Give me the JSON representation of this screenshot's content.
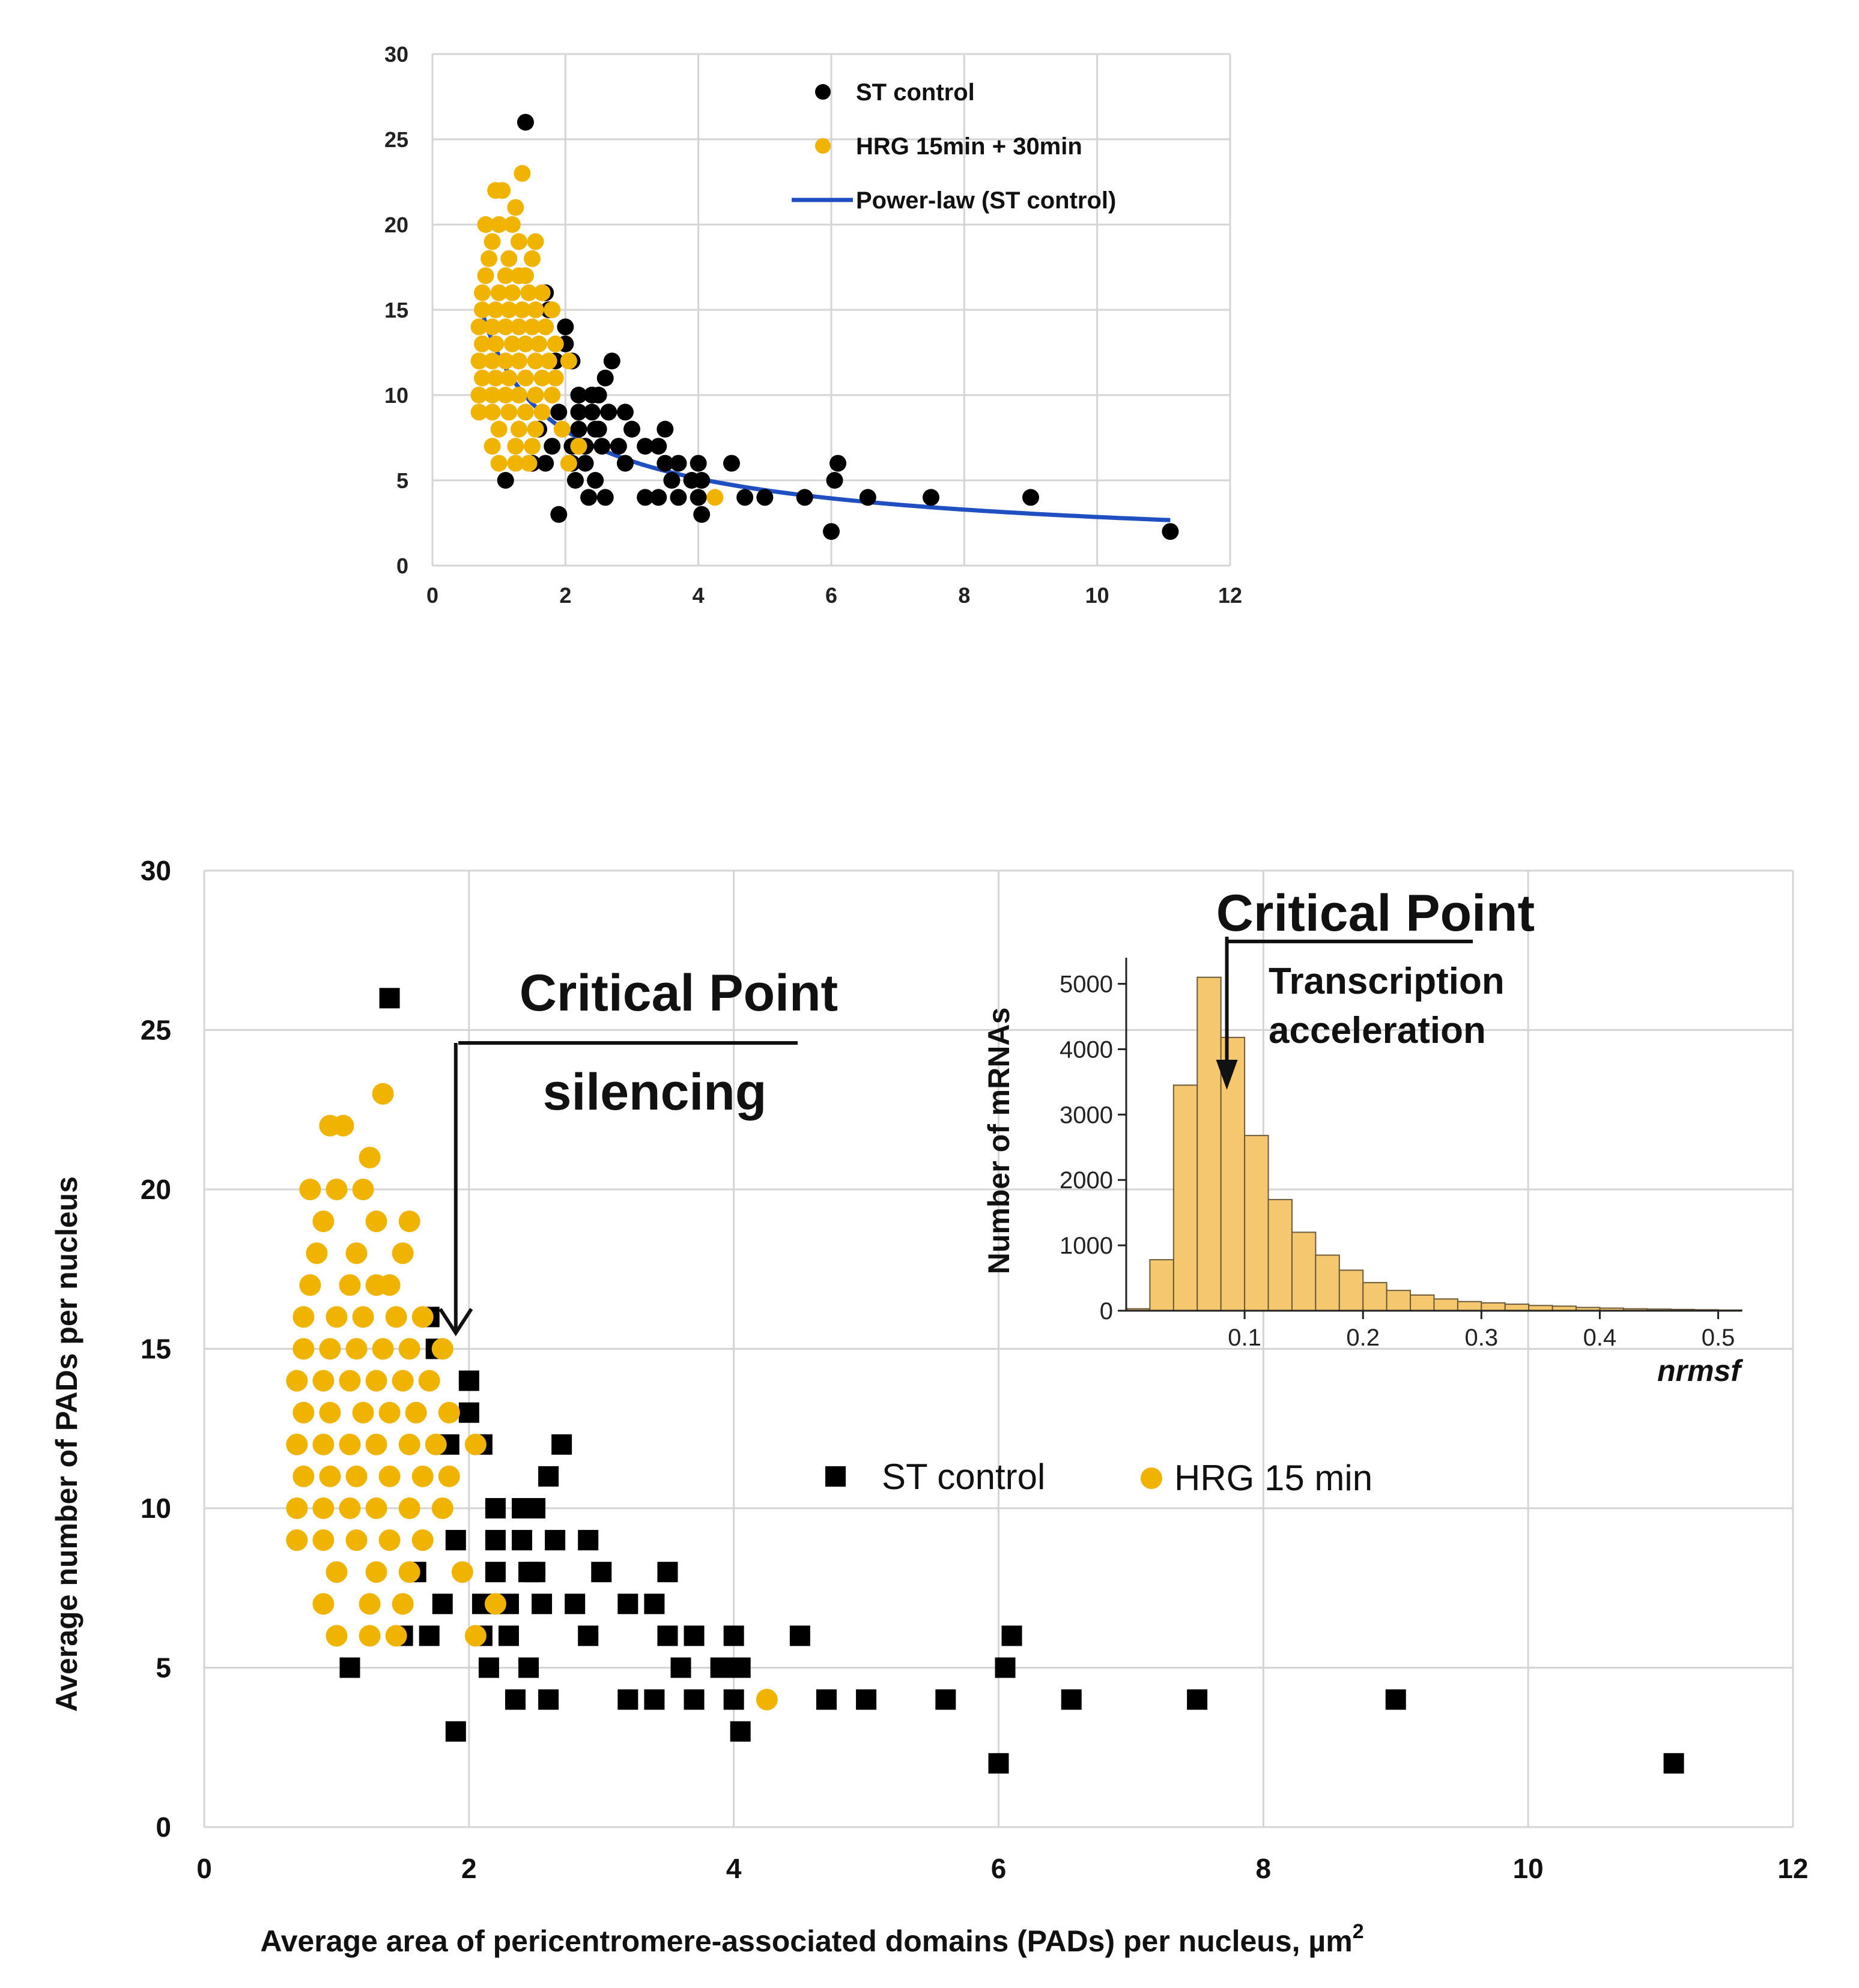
{
  "chart_data": [
    {
      "id": "top",
      "type": "scatter",
      "title": "",
      "xlabel": "",
      "ylabel": "",
      "xlim": [
        0,
        12
      ],
      "ylim": [
        0,
        30
      ],
      "xticks": [
        0,
        2,
        4,
        6,
        8,
        10,
        12
      ],
      "yticks": [
        0,
        5,
        10,
        15,
        20,
        25,
        30
      ],
      "legend": {
        "position": "top-right",
        "entries": [
          {
            "label": "ST control",
            "color": "#000000",
            "marker": "circle"
          },
          {
            "label": "HRG 15min + 30min",
            "color": "#F0B400",
            "marker": "circle"
          },
          {
            "label": "Power-law (ST control)",
            "color": "#1F4FC0",
            "marker": "line"
          }
        ]
      },
      "series": [
        {
          "name": "ST control",
          "marker": "circle",
          "color": "#000000",
          "points": [
            [
              1.4,
              26
            ],
            [
              1.7,
              16
            ],
            [
              1.75,
              15
            ],
            [
              2.0,
              14
            ],
            [
              2.0,
              13
            ],
            [
              1.85,
              12
            ],
            [
              2.1,
              12
            ],
            [
              2.7,
              12
            ],
            [
              2.6,
              11
            ],
            [
              2.2,
              10
            ],
            [
              2.4,
              10
            ],
            [
              2.5,
              10
            ],
            [
              2.9,
              9
            ],
            [
              2.2,
              9
            ],
            [
              2.4,
              9
            ],
            [
              2.65,
              9
            ],
            [
              1.9,
              9
            ],
            [
              2.5,
              8
            ],
            [
              3.0,
              8
            ],
            [
              3.5,
              8
            ],
            [
              1.6,
              8
            ],
            [
              2.2,
              8
            ],
            [
              2.45,
              8
            ],
            [
              2.3,
              7
            ],
            [
              2.8,
              7
            ],
            [
              3.2,
              7
            ],
            [
              3.4,
              7
            ],
            [
              1.8,
              7
            ],
            [
              2.1,
              7
            ],
            [
              2.55,
              7
            ],
            [
              1.5,
              6
            ],
            [
              1.7,
              6
            ],
            [
              2.1,
              6
            ],
            [
              2.3,
              6
            ],
            [
              2.9,
              6
            ],
            [
              3.5,
              6
            ],
            [
              3.7,
              6
            ],
            [
              4.0,
              6
            ],
            [
              4.5,
              6
            ],
            [
              6.1,
              6
            ],
            [
              1.1,
              5
            ],
            [
              2.15,
              5
            ],
            [
              2.45,
              5
            ],
            [
              3.6,
              5
            ],
            [
              3.9,
              5
            ],
            [
              4.05,
              5
            ],
            [
              6.05,
              5
            ],
            [
              2.35,
              4
            ],
            [
              2.6,
              4
            ],
            [
              3.2,
              4
            ],
            [
              3.4,
              4
            ],
            [
              3.7,
              4
            ],
            [
              4.0,
              4
            ],
            [
              4.7,
              4
            ],
            [
              5.0,
              4
            ],
            [
              5.6,
              4
            ],
            [
              6.55,
              4
            ],
            [
              7.5,
              4
            ],
            [
              9.0,
              4
            ],
            [
              1.9,
              3
            ],
            [
              4.05,
              3
            ],
            [
              6.0,
              2
            ],
            [
              11.1,
              2
            ]
          ]
        },
        {
          "name": "HRG 15min + 30min",
          "marker": "circle",
          "color": "#F0B400",
          "points": [
            [
              1.35,
              23
            ],
            [
              0.95,
              22
            ],
            [
              1.05,
              22
            ],
            [
              1.25,
              21
            ],
            [
              0.8,
              20
            ],
            [
              1.0,
              20
            ],
            [
              1.2,
              20
            ],
            [
              1.55,
              19
            ],
            [
              0.9,
              19
            ],
            [
              1.3,
              19
            ],
            [
              1.5,
              18
            ],
            [
              0.85,
              18
            ],
            [
              1.15,
              18
            ],
            [
              1.4,
              17
            ],
            [
              0.8,
              17
            ],
            [
              1.1,
              17
            ],
            [
              1.3,
              17
            ],
            [
              0.75,
              16
            ],
            [
              1.0,
              16
            ],
            [
              1.2,
              16
            ],
            [
              1.45,
              16
            ],
            [
              1.65,
              16
            ],
            [
              0.75,
              15
            ],
            [
              0.95,
              15
            ],
            [
              1.15,
              15
            ],
            [
              1.35,
              15
            ],
            [
              1.55,
              15
            ],
            [
              1.8,
              15
            ],
            [
              0.7,
              14
            ],
            [
              0.9,
              14
            ],
            [
              1.1,
              14
            ],
            [
              1.3,
              14
            ],
            [
              1.5,
              14
            ],
            [
              1.7,
              14
            ],
            [
              0.75,
              13
            ],
            [
              0.95,
              13
            ],
            [
              1.2,
              13
            ],
            [
              1.4,
              13
            ],
            [
              1.6,
              13
            ],
            [
              1.85,
              13
            ],
            [
              0.7,
              12
            ],
            [
              0.9,
              12
            ],
            [
              1.1,
              12
            ],
            [
              1.3,
              12
            ],
            [
              1.55,
              12
            ],
            [
              1.75,
              12
            ],
            [
              2.05,
              12
            ],
            [
              0.75,
              11
            ],
            [
              0.95,
              11
            ],
            [
              1.15,
              11
            ],
            [
              1.4,
              11
            ],
            [
              1.65,
              11
            ],
            [
              1.85,
              11
            ],
            [
              0.7,
              10
            ],
            [
              0.9,
              10
            ],
            [
              1.1,
              10
            ],
            [
              1.3,
              10
            ],
            [
              1.55,
              10
            ],
            [
              1.8,
              10
            ],
            [
              0.7,
              9
            ],
            [
              0.9,
              9
            ],
            [
              1.15,
              9
            ],
            [
              1.4,
              9
            ],
            [
              1.65,
              9
            ],
            [
              1.0,
              8
            ],
            [
              1.3,
              8
            ],
            [
              1.55,
              8
            ],
            [
              1.95,
              8
            ],
            [
              0.9,
              7
            ],
            [
              1.25,
              7
            ],
            [
              1.5,
              7
            ],
            [
              2.2,
              7
            ],
            [
              1.0,
              6
            ],
            [
              1.25,
              6
            ],
            [
              1.45,
              6
            ],
            [
              2.05,
              6
            ],
            [
              4.25,
              4
            ]
          ]
        },
        {
          "name": "Power-law (ST control)",
          "type": "line",
          "color": "#1F4FC0",
          "formula": "y = 12.3 * x^-0.635",
          "x_range": [
            0.7,
            11.1
          ]
        }
      ]
    },
    {
      "id": "bottom",
      "type": "scatter",
      "title": "",
      "xlabel": "Average area  of pericentromere-associated domains (PADs) per nucleus, µm",
      "xlabel_superscript": "2",
      "ylabel": "Average number of PADs per nucleus",
      "xlim": [
        0,
        12
      ],
      "ylim": [
        0,
        30
      ],
      "xticks": [
        0,
        2,
        4,
        6,
        8,
        10,
        12
      ],
      "yticks": [
        0,
        5,
        10,
        15,
        20,
        25,
        30
      ],
      "legend": {
        "position": "center-right",
        "entries": [
          {
            "label": "ST control",
            "color": "#000000",
            "marker": "square"
          },
          {
            "label": "HRG 15 min",
            "color": "#F0B400",
            "marker": "circle"
          }
        ]
      },
      "annotations": {
        "critical_point_main": "Critical Point",
        "silencing": "silencing",
        "arrow_x": 1.9,
        "arrow_y": 15.5
      },
      "series": [
        {
          "name": "ST control",
          "marker": "square",
          "color": "#000000",
          "same_as_top_series": 0
        },
        {
          "name": "HRG 15 min",
          "marker": "circle",
          "color": "#F0B400",
          "same_as_top_series": 1
        }
      ]
    },
    {
      "id": "inset",
      "type": "bar",
      "title": "Critical Point",
      "annotation": "Transcription acceleration",
      "annotation_lines": [
        "Transcription",
        "acceleration"
      ],
      "xlabel": "nrmsf",
      "ylabel": "Number of mRNAs",
      "xlim": [
        0,
        0.52
      ],
      "ylim": [
        0,
        5400
      ],
      "xticks": [
        0.1,
        0.2,
        0.3,
        0.4,
        0.5
      ],
      "yticks": [
        0,
        1000,
        2000,
        3000,
        4000,
        5000
      ],
      "bin_width": 0.02,
      "bin_starts": [
        0.0,
        0.02,
        0.04,
        0.06,
        0.08,
        0.1,
        0.12,
        0.14,
        0.16,
        0.18,
        0.2,
        0.22,
        0.24,
        0.26,
        0.28,
        0.3,
        0.32,
        0.34,
        0.36,
        0.38,
        0.4,
        0.42,
        0.44,
        0.46,
        0.48,
        0.5
      ],
      "values": [
        30,
        780,
        3450,
        5100,
        4180,
        2680,
        1700,
        1200,
        850,
        620,
        430,
        310,
        240,
        180,
        140,
        120,
        100,
        80,
        70,
        50,
        40,
        30,
        25,
        20,
        15,
        10
      ],
      "color": "#F5C870",
      "arrow_x": 0.085
    }
  ]
}
